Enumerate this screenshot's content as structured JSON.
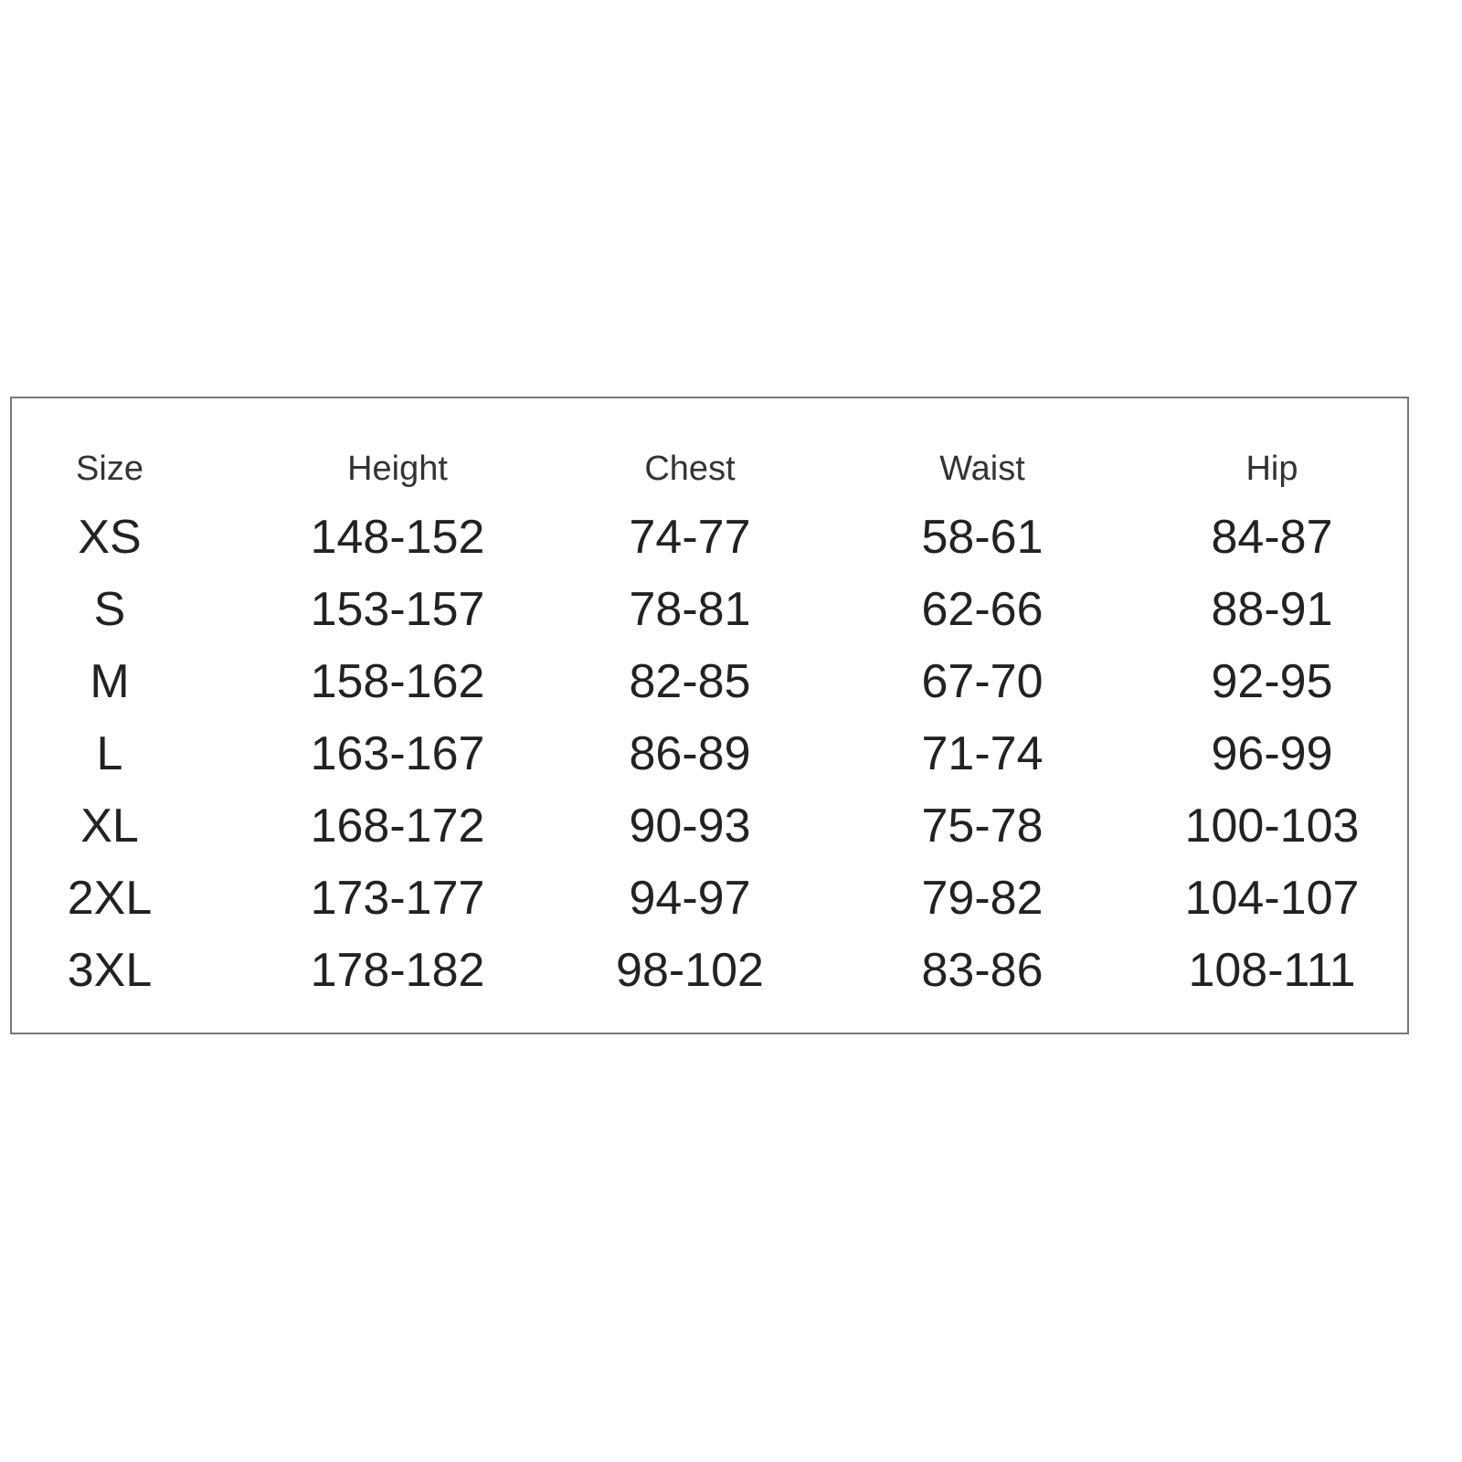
{
  "table": {
    "headers": [
      "Size",
      "Height",
      "Chest",
      "Waist",
      "Hip"
    ],
    "rows": [
      [
        "XS",
        "148-152",
        "74-77",
        "58-61",
        "84-87"
      ],
      [
        "S",
        "153-157",
        "78-81",
        "62-66",
        "88-91"
      ],
      [
        "M",
        "158-162",
        "82-85",
        "67-70",
        "92-95"
      ],
      [
        "L",
        "163-167",
        "86-89",
        "71-74",
        "96-99"
      ],
      [
        "XL",
        "168-172",
        "90-93",
        "75-78",
        "100-103"
      ],
      [
        "2XL",
        "173-177",
        "94-97",
        "79-82",
        "104-107"
      ],
      [
        "3XL",
        "178-182",
        "98-102",
        "83-86",
        "108-111"
      ]
    ]
  }
}
